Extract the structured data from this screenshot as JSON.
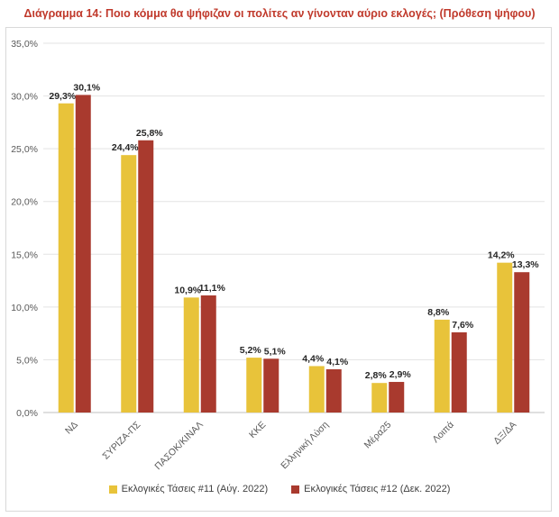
{
  "title": "Διάγραμμα 14: Ποιο κόμμα θα ψήφιζαν οι πολίτες αν γίνονταν αύριο εκλογές; (Πρόθεση ψήφου)",
  "chart_data": {
    "type": "bar",
    "categories": [
      "ΝΔ",
      "ΣΥΡΙΖΑ-ΠΣ",
      "ΠΑΣΟΚ/ΚΙΝΑΛ",
      "ΚΚΕ",
      "Ελληνική Λύση",
      "Μέρα25",
      "Λοιπά",
      "ΔΞ/ΔΑ"
    ],
    "series": [
      {
        "name": "Εκλογικές Τάσεις #11 (Αύγ. 2022)",
        "color": "#e8c33a",
        "values": [
          29.3,
          24.4,
          10.9,
          5.2,
          4.4,
          2.8,
          8.8,
          14.2
        ],
        "labels": [
          "29,3%",
          "24,4%",
          "10,9%",
          "5,2%",
          "4,4%",
          "2,8%",
          "8,8%",
          "14,2%"
        ]
      },
      {
        "name": "Εκλογικές Τάσεις #12 (Δεκ. 2022)",
        "color": "#a93a2e",
        "values": [
          30.1,
          25.8,
          11.1,
          5.1,
          4.1,
          2.9,
          7.6,
          13.3
        ],
        "labels": [
          "30,1%",
          "25,8%",
          "11,1%",
          "5,1%",
          "4,1%",
          "2,9%",
          "7,6%",
          "13,3%"
        ]
      }
    ],
    "ylim": [
      0,
      35
    ],
    "yticks": [
      0,
      5,
      10,
      15,
      20,
      25,
      30,
      35
    ],
    "ytick_labels": [
      "0,0%",
      "5,0%",
      "10,0%",
      "15,0%",
      "20,0%",
      "25,0%",
      "30,0%",
      "35,0%"
    ],
    "grid": true,
    "legend": "bottom"
  }
}
